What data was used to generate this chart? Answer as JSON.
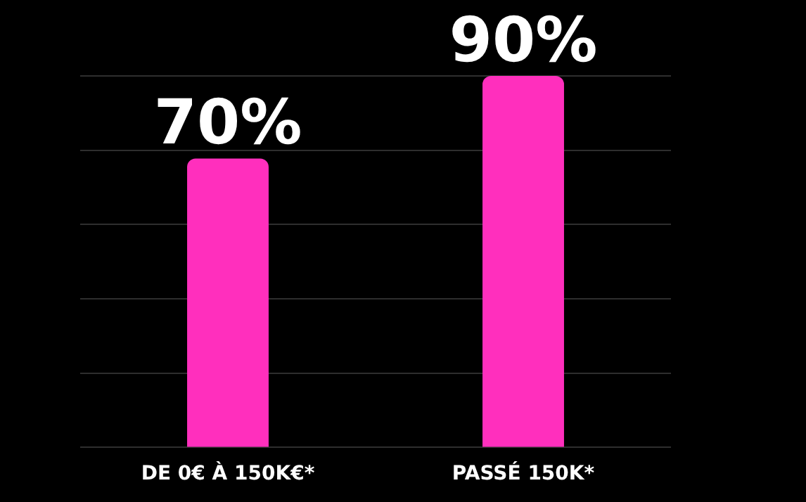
{
  "chart_data": {
    "type": "bar",
    "categories": [
      "DE 0€ À 150K€*",
      "PASSÉ 150K*"
    ],
    "values": [
      70,
      90
    ],
    "color": "#ff2fbd",
    "value_labels": [
      "70%",
      "90%"
    ],
    "grid": "y",
    "tick_labels": "x"
  }
}
